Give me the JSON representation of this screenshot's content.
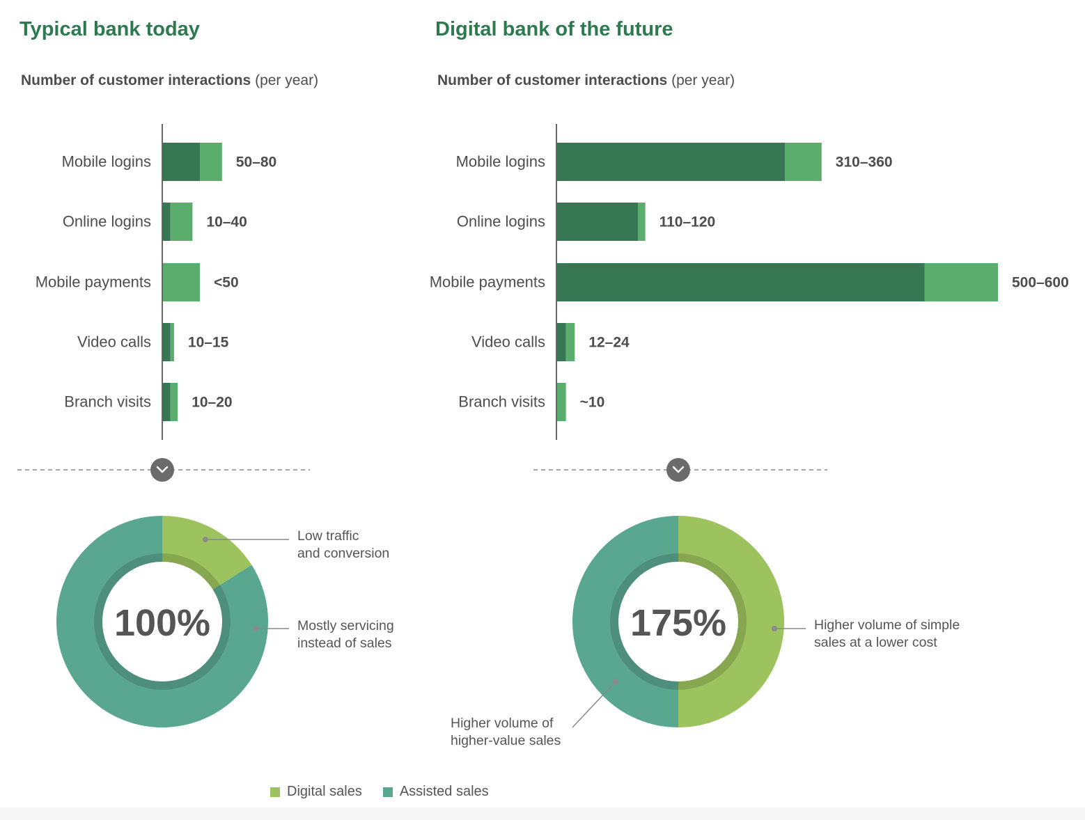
{
  "colors": {
    "title": "#2e7a50",
    "bar_dark": "#377754",
    "bar_light": "#5aad6c",
    "digital_sales": "#9dc35e",
    "assisted_sales": "#5aa78f",
    "text": "#555555",
    "axis": "#666666",
    "chevron_circle": "#6b6b6b"
  },
  "panels": [
    {
      "title": "Typical bank today",
      "subtitle_main": "Number of customer interactions",
      "subtitle_paren": "(per year)"
    },
    {
      "title": "Digital bank of the future",
      "subtitle_main": "Number of customer interactions",
      "subtitle_paren": "(per year)"
    }
  ],
  "chart_data": [
    {
      "type": "bar",
      "orientation": "horizontal",
      "stacked": true,
      "categories": [
        "Mobile logins",
        "Online logins",
        "Mobile payments",
        "Video calls",
        "Branch visits"
      ],
      "series": [
        {
          "color": "#377754",
          "values": [
            50,
            10,
            0,
            10,
            10
          ]
        },
        {
          "color": "#5aad6c",
          "values": [
            30,
            30,
            50,
            5,
            10
          ]
        }
      ],
      "labels": [
        "50–80",
        "10–40",
        "<50",
        "10–15",
        "10–20"
      ],
      "xlim": [
        0,
        600
      ]
    },
    {
      "type": "bar",
      "orientation": "horizontal",
      "stacked": true,
      "categories": [
        "Mobile logins",
        "Online logins",
        "Mobile payments",
        "Video calls",
        "Branch visits"
      ],
      "series": [
        {
          "color": "#377754",
          "values": [
            310,
            110,
            500,
            12,
            0
          ]
        },
        {
          "color": "#5aad6c",
          "values": [
            50,
            10,
            100,
            12,
            12
          ]
        }
      ],
      "labels": [
        "310–360",
        "110–120",
        "500–600",
        "12–24",
        "~10"
      ],
      "xlim": [
        0,
        600
      ]
    },
    {
      "type": "pie",
      "donut": true,
      "center_label": "100%",
      "slices": [
        {
          "name": "Digital sales",
          "value": 16,
          "color": "#9dc35e"
        },
        {
          "name": "Assisted sales",
          "value": 84,
          "color": "#5aa78f"
        }
      ],
      "annotations": [
        {
          "slice": "Digital sales",
          "lines": [
            "Low traffic",
            "and conversion"
          ]
        },
        {
          "slice": "Assisted sales",
          "lines": [
            "Mostly servicing",
            "instead of sales"
          ]
        }
      ]
    },
    {
      "type": "pie",
      "donut": true,
      "center_label": "175%",
      "slices": [
        {
          "name": "Digital sales",
          "value": 50,
          "color": "#9dc35e"
        },
        {
          "name": "Assisted sales",
          "value": 50,
          "color": "#5aa78f"
        }
      ],
      "annotations": [
        {
          "slice": "Digital sales",
          "lines": [
            "Higher volume of simple",
            "sales at a lower cost"
          ]
        },
        {
          "slice": "Assisted sales",
          "lines": [
            "Higher volume of",
            "higher-value sales"
          ]
        }
      ]
    }
  ],
  "legend": [
    {
      "label": "Digital sales",
      "color": "#9dc35e"
    },
    {
      "label": "Assisted sales",
      "color": "#5aa78f"
    }
  ]
}
